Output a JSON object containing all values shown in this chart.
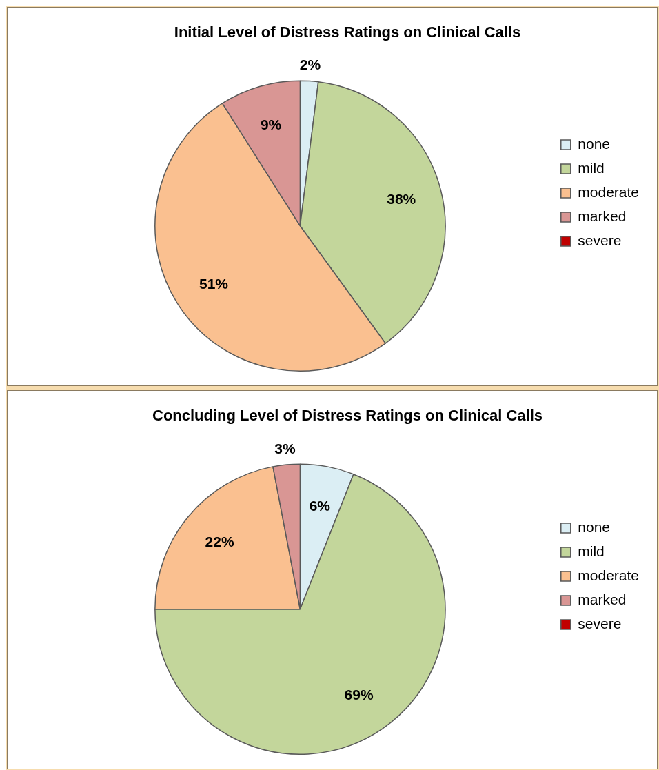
{
  "chart_data": [
    {
      "type": "pie",
      "title": "Initial Level of Distress Ratings on Clinical Calls",
      "categories": [
        "none",
        "mild",
        "moderate",
        "marked",
        "severe"
      ],
      "values": [
        2,
        38,
        51,
        9,
        0
      ],
      "colors": [
        "#dbeef4",
        "#c3d69b",
        "#fac090",
        "#d99694",
        "#c00000"
      ],
      "value_labels": [
        "2%",
        "38%",
        "51%",
        "9%",
        null
      ],
      "legend": "right"
    },
    {
      "type": "pie",
      "title": "Concluding Level of Distress Ratings on Clinical Calls",
      "categories": [
        "none",
        "mild",
        "moderate",
        "marked",
        "severe"
      ],
      "values": [
        6,
        69,
        22,
        3,
        0
      ],
      "colors": [
        "#dbeef4",
        "#c3d69b",
        "#fac090",
        "#d99694",
        "#c00000"
      ],
      "value_labels": [
        "6%",
        "69%",
        "22%",
        "3%",
        null
      ],
      "legend": "right"
    }
  ]
}
